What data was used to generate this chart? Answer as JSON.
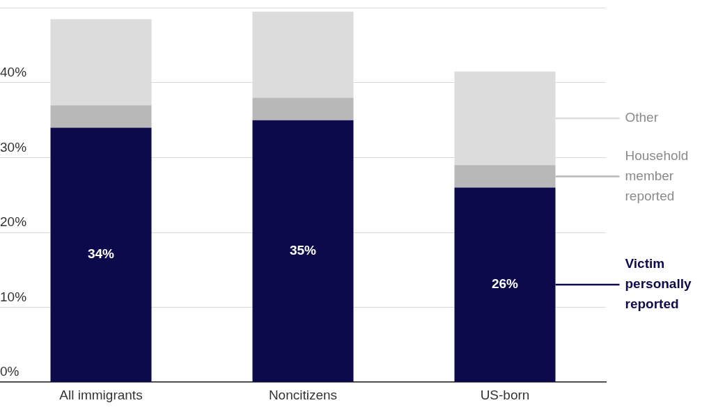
{
  "chart_data": {
    "type": "bar",
    "stacked": true,
    "categories": [
      "All immigrants",
      "Noncitizens",
      "US-born"
    ],
    "series": [
      {
        "name": "Victim personally reported",
        "color": "#0c0a4a",
        "values": [
          34,
          35,
          26
        ],
        "value_labels": [
          "34%",
          "35%",
          "26%"
        ]
      },
      {
        "name": "Household member reported",
        "color": "#b8b8b8",
        "values": [
          3,
          3,
          3
        ]
      },
      {
        "name": "Other",
        "color": "#dcdcdc",
        "values": [
          11.5,
          11.5,
          12.5
        ]
      }
    ],
    "ylim": [
      0,
      50
    ],
    "yticks": [
      {
        "value": 0,
        "label": "0%"
      },
      {
        "value": 10,
        "label": "10%"
      },
      {
        "value": 20,
        "label": "20%"
      },
      {
        "value": 30,
        "label": "30%"
      },
      {
        "value": 40,
        "label": "40%"
      },
      {
        "value": 50,
        "label": null
      }
    ],
    "grid": "y",
    "legend": "right"
  }
}
